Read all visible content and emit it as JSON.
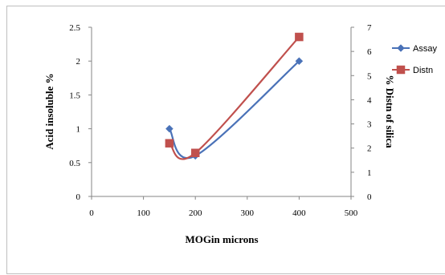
{
  "chart_data": {
    "type": "line",
    "title": "",
    "xlabel": "MOGin microns",
    "ylabel": "Acid insoluble %",
    "y2label": "% Distn of silica",
    "xlim": [
      0,
      500
    ],
    "ylim": [
      0,
      2.5
    ],
    "y2lim": [
      0,
      7
    ],
    "x_ticks": [
      "0",
      "100",
      "200",
      "300",
      "400",
      "500"
    ],
    "y_ticks": [
      "0",
      "0.5",
      "1",
      "1.5",
      "2",
      "2.5"
    ],
    "y2_ticks": [
      "0",
      "1",
      "2",
      "3",
      "4",
      "5",
      "6",
      "7"
    ],
    "legend_position": "right",
    "grid": false,
    "series": [
      {
        "name": "Assay",
        "axis": "left",
        "color": "#4a72b8",
        "marker": "diamond",
        "x": [
          150,
          200,
          400
        ],
        "y": [
          1.0,
          0.6,
          2.0
        ]
      },
      {
        "name": "Distn",
        "axis": "right",
        "color": "#c0504d",
        "marker": "square",
        "x": [
          150,
          200,
          400
        ],
        "y": [
          2.2,
          1.8,
          6.6
        ]
      }
    ]
  }
}
